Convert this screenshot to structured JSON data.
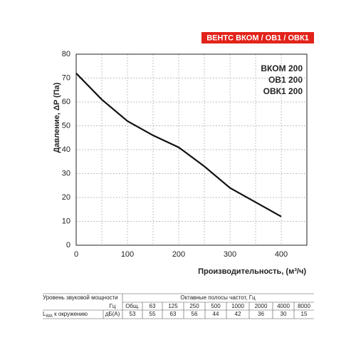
{
  "chart_data": {
    "type": "line",
    "title": "ВЕНТС ВКОМ / ОВ1 / ОВК1",
    "annotations": [
      "ВКОМ 200",
      "ОВ1 200",
      "ОВК1 200"
    ],
    "x_label": "Производительность, (м³/ч)",
    "y_label": "Давление, ΔP (Па)",
    "x": [
      0,
      50,
      100,
      150,
      200,
      250,
      300,
      350,
      400
    ],
    "series": [
      {
        "color": "#111111",
        "values": [
          72,
          61,
          52,
          46,
          41,
          33,
          24,
          18,
          12
        ]
      }
    ],
    "xlim": [
      0,
      450
    ],
    "ylim": [
      0,
      80
    ],
    "xticks": [
      0,
      100,
      200,
      300,
      400
    ],
    "yticks": [
      0,
      10,
      20,
      30,
      40,
      50,
      60,
      70,
      80
    ],
    "xgrid": [
      50,
      100,
      150,
      200,
      250,
      300,
      350,
      400
    ],
    "grid": true,
    "title_color": "#e2231a"
  },
  "table": {
    "header_left": "Уровень звуковой мощности",
    "header_right": "Октавные полосы частот, Гц",
    "unit_row_label": "Гц",
    "columns": [
      "Общ.",
      "63",
      "125",
      "250",
      "500",
      "1000",
      "2000",
      "4000",
      "8000"
    ],
    "row_label_symbol": "L",
    "row_label_sub": "WA",
    "row_label_text": " к окружению",
    "row_unit": "дБ(А)",
    "values": [
      53,
      55,
      63,
      56,
      44,
      42,
      36,
      30,
      15
    ]
  }
}
